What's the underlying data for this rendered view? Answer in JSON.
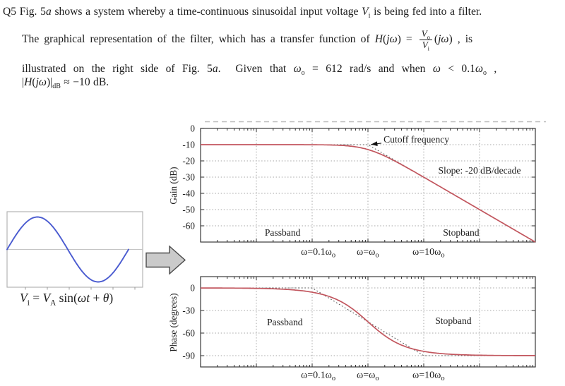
{
  "question": {
    "id": "Q5",
    "lines": [
      {
        "segments": [
          {
            "t": "Q5 Fig. 5"
          },
          {
            "t": "a",
            "i": 1
          },
          {
            "t": " shows a system whereby a time-continuous sinusoidal input voltage "
          },
          {
            "t": "V",
            "i": 1
          },
          {
            "t": "i",
            "sub": 1
          },
          {
            "t": " is being fed into a filter."
          }
        ]
      },
      {
        "segments": [
          {
            "t": "The graphical representation of the filter, which has a transfer function of "
          },
          {
            "t": "H",
            "i": 1
          },
          {
            "t": "("
          },
          {
            "t": "jω",
            "i": 1
          },
          {
            "t": ") = "
          },
          {
            "frac": {
              "num": [
                {
                  "t": "V",
                  "i": 1
                },
                {
                  "t": "o",
                  "sub": 1
                }
              ],
              "den": [
                {
                  "t": "V",
                  "i": 1
                },
                {
                  "t": "i",
                  "sub": 1
                }
              ]
            }
          },
          {
            "t": "("
          },
          {
            "t": "jω",
            "i": 1
          },
          {
            "t": ") , is"
          }
        ]
      },
      {
        "segments": [
          {
            "t": "illustrated on the right side of Fig. 5"
          },
          {
            "t": "a",
            "i": 1
          },
          {
            "t": ".  Given that "
          },
          {
            "t": "ω",
            "i": 1
          },
          {
            "t": "o",
            "sub": 1
          },
          {
            "t": " = 612 rad/s and when "
          },
          {
            "t": "ω",
            "i": 1
          },
          {
            "t": " < 0.1"
          },
          {
            "t": "ω",
            "i": 1
          },
          {
            "t": "o",
            "sub": 1
          },
          {
            "t": " ,"
          }
        ]
      },
      {
        "segments": [
          {
            "t": "|"
          },
          {
            "t": "H",
            "i": 1
          },
          {
            "t": "("
          },
          {
            "t": "jω",
            "i": 1
          },
          {
            "t": ")|"
          },
          {
            "t": "dB",
            "sub": 1
          },
          {
            "t": " ≈ −10 dB."
          }
        ]
      }
    ]
  },
  "input_panel": {
    "equation_segments": [
      {
        "t": "V",
        "i": 1
      },
      {
        "t": "i",
        "sub": 1
      },
      {
        "t": " = "
      },
      {
        "t": "V",
        "i": 1
      },
      {
        "t": "A",
        "sub": 1
      },
      {
        "t": " sin("
      },
      {
        "t": "ωt",
        "i": 1
      },
      {
        "t": " + "
      },
      {
        "t": "θ",
        "i": 1
      },
      {
        "t": ")"
      }
    ],
    "waveform": {
      "shape": "sine",
      "periods": 1,
      "amplitude_rel": 0.86,
      "color": "#4a5bd0"
    }
  },
  "chart_data": [
    {
      "id": "gain",
      "type": "line",
      "title": "Gain response (Bode magnitude, log frequency axis)",
      "x_axis": {
        "unit": "omega relative to omega_o, log10 scale",
        "range_log10": [
          -3,
          3
        ],
        "gridline_decades": [
          -2,
          -1,
          0,
          1,
          2
        ],
        "tick_labels": [
          {
            "log10": -1,
            "pre": "ω=0.1ω",
            "sub": "o"
          },
          {
            "log10": 0,
            "pre": "ω=ω",
            "sub": "o"
          },
          {
            "log10": 1,
            "pre": "ω=10ω",
            "sub": "o"
          }
        ]
      },
      "y_axis": {
        "label": "Gain (dB)",
        "range": [
          0,
          -70
        ],
        "ticks": [
          0,
          -10,
          -20,
          -30,
          -40,
          -50,
          -60
        ]
      },
      "model": {
        "kind": "first_order_lowpass_gain",
        "dc_gain_db": -10,
        "corner": "ω=ωo",
        "slope": "-20 dB/decade"
      },
      "samples": {
        "log10_w_over_wo": [
          -3,
          -2,
          -1,
          -0.5,
          0,
          0.5,
          1,
          2,
          3
        ],
        "gain_db": [
          -10,
          -10,
          -10.04,
          -10.41,
          -13.01,
          -20.41,
          -30.04,
          -50,
          -70
        ]
      },
      "asymptote": [
        [
          -3,
          -10
        ],
        [
          0,
          -10
        ],
        [
          3,
          -70
        ]
      ],
      "curve_color": "#c2565e",
      "annotations": [
        {
          "text": "Cutoff frequency",
          "x": 0.28,
          "y": -8.7,
          "anchor": "start",
          "arrow": {
            "from": [
              0.24,
              -9.1
            ],
            "to": [
              0.055,
              -9.9
            ]
          }
        },
        {
          "text": "Slope: -20 dB/decade",
          "x": 2.0,
          "y": -27.8,
          "anchor": "middle"
        },
        {
          "text": "Passband",
          "x": -1.53,
          "y": -66,
          "anchor": "middle"
        },
        {
          "text": "Stopband",
          "x": 1.67,
          "y": -66,
          "anchor": "middle"
        }
      ]
    },
    {
      "id": "phase",
      "type": "line",
      "title": "Phase response (Bode phase, log frequency axis)",
      "x_axis": {
        "unit": "omega relative to omega_o, log10 scale",
        "range_log10": [
          -3,
          3
        ],
        "gridline_decades": [
          -2,
          -1,
          0,
          1,
          2
        ],
        "tick_labels": [
          {
            "log10": -1,
            "pre": "ω=0.1ω",
            "sub": "o"
          },
          {
            "log10": 0,
            "pre": "ω=ω",
            "sub": "o"
          },
          {
            "log10": 1,
            "pre": "ω=10ω",
            "sub": "o"
          }
        ]
      },
      "y_axis": {
        "label": "Phase (degrees)",
        "range": [
          15,
          -105
        ],
        "ticks": [
          0,
          -30,
          -60,
          -90
        ]
      },
      "model": {
        "kind": "first_order_lowpass_phase"
      },
      "samples": {
        "log10_w_over_wo": [
          -3,
          -2,
          -1,
          -0.5,
          0,
          0.5,
          1,
          2,
          3
        ],
        "phase_deg": [
          -0.06,
          -0.57,
          -5.71,
          -17.55,
          -45,
          -72.45,
          -84.29,
          -89.43,
          -89.94
        ]
      },
      "asymptote": [
        [
          -3,
          0
        ],
        [
          -1,
          0
        ],
        [
          1,
          -90
        ],
        [
          3,
          -90
        ]
      ],
      "curve_color": "#c2565e",
      "annotations": [
        {
          "text": "Passband",
          "x": -1.49,
          "y": -49.7,
          "anchor": "middle"
        },
        {
          "text": "Stopband",
          "x": 1.53,
          "y": -47.8,
          "anchor": "middle"
        }
      ]
    }
  ]
}
